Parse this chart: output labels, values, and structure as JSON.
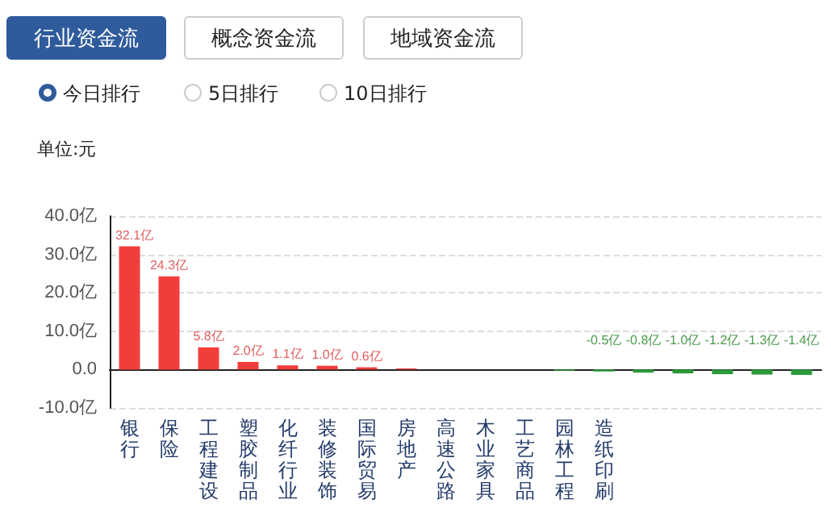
{
  "chart_data": {
    "type": "bar",
    "ylabel": "单位:元",
    "annotations": [
      "行业资金流",
      "概念资金流",
      "地域资金流",
      "今日排行",
      "5日排行",
      "10日排行"
    ],
    "categories": [
      "银行",
      "保险",
      "工程建设",
      "塑胶制品",
      "化纤行业",
      "装修装饰",
      "国际贸易",
      "房地产",
      "高速公路",
      "木业家具",
      "工艺商品",
      "园林工程",
      "造纸印刷",
      null,
      null,
      null,
      null,
      null
    ],
    "values": [
      32.1,
      24.3,
      5.8,
      2.0,
      1.1,
      1.0,
      0.6,
      0.3,
      null,
      null,
      null,
      -0.3,
      -0.5,
      -0.8,
      -1.0,
      -1.2,
      -1.3,
      -1.4
    ],
    "colors": [
      "#f23d3d",
      "#f23d3d",
      "#f23d3d",
      "#f23d3d",
      "#f23d3d",
      "#f23d3d",
      "#f23d3d",
      "#f23d3d",
      "#f23d3d",
      "#f23d3d",
      "#2c9a3a",
      "#2c9a3a",
      "#2c9a3a",
      "#2c9a3a",
      "#2c9a3a",
      "#2c9a3a",
      "#2c9a3a",
      "#2c9a3a"
    ],
    "value_labels": [
      "32.1亿",
      "24.3亿",
      "5.8亿",
      "2.0亿",
      "1.1亿",
      "1.0亿",
      "0.6亿",
      null,
      null,
      null,
      null,
      null,
      "-0.5亿",
      "-0.8亿",
      "-1.0亿",
      "-1.2亿",
      "-1.3亿",
      "-1.4亿"
    ],
    "ylim": [
      -10,
      40
    ],
    "yticks": [
      {
        "value": -10,
        "label": "-10.0亿"
      },
      {
        "value": 0,
        "label": "0.0"
      },
      {
        "value": 10,
        "label": "10.0亿"
      },
      {
        "value": 20,
        "label": "20.0亿"
      },
      {
        "value": 30,
        "label": "30.0亿"
      },
      {
        "value": 40,
        "label": "40.0亿"
      }
    ],
    "grid": "y"
  }
}
